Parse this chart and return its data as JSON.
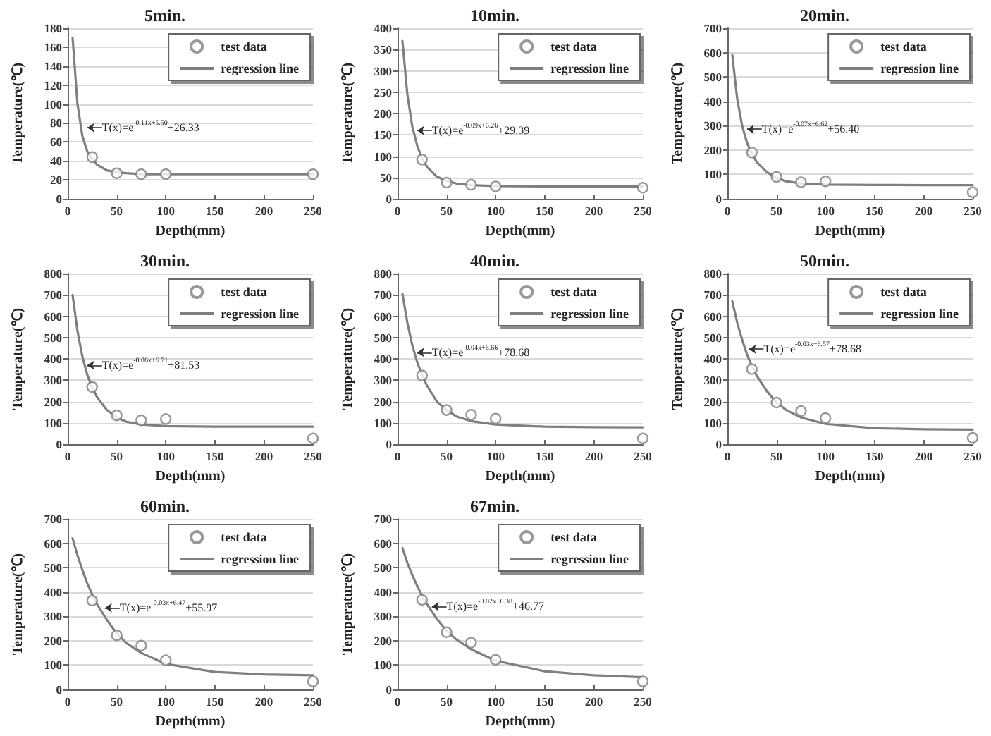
{
  "chart_data": [
    {
      "type": "line",
      "title": "5min.",
      "xlabel": "Depth(mm)",
      "ylabel": "Temperature(℃)",
      "xlim": [
        0,
        250
      ],
      "xticks": [
        0,
        50,
        100,
        150,
        200,
        250
      ],
      "ylim": [
        0,
        180
      ],
      "yticks": [
        0,
        20,
        40,
        60,
        80,
        100,
        120,
        140,
        160,
        180
      ],
      "grid": "y",
      "legend": "top right",
      "annotations": [
        {
          "text": "T(x)=e$^{-0.11x+5.50}$+26.33",
          "x": 20,
          "y": 75
        }
      ],
      "series": [
        {
          "name": "test data",
          "type": "scatter",
          "marker": "circle",
          "color": "#808080",
          "x": [
            25,
            50,
            75,
            100,
            250
          ],
          "values": [
            44,
            27,
            26,
            26,
            26
          ]
        },
        {
          "name": "regression line",
          "type": "line",
          "marker": "none",
          "line_style": "solid",
          "color": "#7f7f7f",
          "x": [
            5,
            10,
            15,
            20,
            25,
            30,
            40,
            50,
            60,
            75,
            100,
            150,
            200,
            250
          ],
          "values": [
            170,
            100,
            66,
            50,
            42,
            36,
            30,
            28,
            27,
            26,
            26,
            26,
            26,
            26
          ]
        }
      ]
    },
    {
      "type": "line",
      "title": "10min.",
      "xlabel": "Depth(mm)",
      "ylabel": "Temperature(℃)",
      "xlim": [
        0,
        250
      ],
      "xticks": [
        0,
        50,
        100,
        150,
        200,
        250
      ],
      "ylim": [
        0,
        400
      ],
      "yticks": [
        0,
        50,
        100,
        150,
        200,
        250,
        300,
        350,
        400
      ],
      "grid": "y",
      "legend": "top right",
      "annotations": [
        {
          "text": "T(x)=e$^{-0.09x+6.26}$+29.39",
          "x": 20,
          "y": 160
        }
      ],
      "series": [
        {
          "name": "test data",
          "type": "scatter",
          "marker": "circle",
          "color": "#808080",
          "x": [
            25,
            50,
            75,
            100,
            250
          ],
          "values": [
            92,
            38,
            33,
            29,
            26
          ]
        },
        {
          "name": "regression line",
          "type": "line",
          "marker": "none",
          "line_style": "solid",
          "color": "#7f7f7f",
          "x": [
            5,
            10,
            15,
            20,
            25,
            30,
            40,
            50,
            60,
            75,
            100,
            150,
            200,
            250
          ],
          "values": [
            370,
            245,
            170,
            125,
            95,
            75,
            52,
            42,
            36,
            32,
            30,
            29,
            29,
            29
          ]
        }
      ]
    },
    {
      "type": "line",
      "title": "20min.",
      "xlabel": "Depth(mm)",
      "ylabel": "Temperature(℃)",
      "xlim": [
        0,
        250
      ],
      "xticks": [
        0,
        50,
        100,
        150,
        200,
        250
      ],
      "ylim": [
        0,
        700
      ],
      "yticks": [
        0,
        100,
        200,
        300,
        400,
        500,
        600,
        700
      ],
      "grid": "y",
      "legend": "top right",
      "annotations": [
        {
          "text": "T(x)=e$^{-0.07x+6.62}$+56.40",
          "x": 20,
          "y": 285
        }
      ],
      "series": [
        {
          "name": "test data",
          "type": "scatter",
          "marker": "circle",
          "color": "#808080",
          "x": [
            25,
            50,
            75,
            100,
            250
          ],
          "values": [
            190,
            90,
            68,
            72,
            27
          ]
        },
        {
          "name": "regression line",
          "type": "line",
          "marker": "none",
          "line_style": "solid",
          "color": "#7f7f7f",
          "x": [
            5,
            10,
            15,
            20,
            25,
            30,
            40,
            50,
            60,
            75,
            100,
            150,
            200,
            250
          ],
          "values": [
            590,
            410,
            300,
            230,
            185,
            150,
            110,
            85,
            72,
            63,
            58,
            57,
            56,
            56
          ]
        }
      ]
    },
    {
      "type": "line",
      "title": "30min.",
      "xlabel": "Depth(mm)",
      "ylabel": "Temperature(℃)",
      "xlim": [
        0,
        250
      ],
      "xticks": [
        0,
        50,
        100,
        150,
        200,
        250
      ],
      "ylim": [
        0,
        800
      ],
      "yticks": [
        0,
        100,
        200,
        300,
        400,
        500,
        600,
        700,
        800
      ],
      "grid": "y",
      "legend": "top right",
      "annotations": [
        {
          "text": "T(x)=e$^{-0.06x+6.71}$+81.53",
          "x": 20,
          "y": 370
        }
      ],
      "series": [
        {
          "name": "test data",
          "type": "scatter",
          "marker": "circle",
          "color": "#808080",
          "x": [
            25,
            50,
            75,
            100,
            250
          ],
          "values": [
            268,
            135,
            112,
            118,
            27
          ]
        },
        {
          "name": "regression line",
          "type": "line",
          "marker": "none",
          "line_style": "solid",
          "color": "#7f7f7f",
          "x": [
            5,
            10,
            15,
            20,
            25,
            30,
            40,
            50,
            60,
            75,
            100,
            150,
            200,
            250
          ],
          "values": [
            700,
            530,
            410,
            325,
            265,
            220,
            160,
            125,
            105,
            92,
            85,
            82,
            82,
            82
          ]
        }
      ]
    },
    {
      "type": "line",
      "title": "40min.",
      "xlabel": "Depth(mm)",
      "ylabel": "Temperature(℃)",
      "xlim": [
        0,
        250
      ],
      "xticks": [
        0,
        50,
        100,
        150,
        200,
        250
      ],
      "ylim": [
        0,
        800
      ],
      "yticks": [
        0,
        100,
        200,
        300,
        400,
        500,
        600,
        700,
        800
      ],
      "grid": "y",
      "legend": "top right",
      "annotations": [
        {
          "text": "T(x)=e$^{-0.04x+6.66}$+78.68",
          "x": 20,
          "y": 430
        }
      ],
      "series": [
        {
          "name": "test data",
          "type": "scatter",
          "marker": "circle",
          "color": "#808080",
          "x": [
            25,
            50,
            75,
            100,
            250
          ],
          "values": [
            322,
            160,
            138,
            120,
            27
          ]
        },
        {
          "name": "regression line",
          "type": "line",
          "marker": "none",
          "line_style": "solid",
          "color": "#7f7f7f",
          "x": [
            5,
            10,
            15,
            20,
            25,
            30,
            40,
            50,
            60,
            75,
            100,
            150,
            200,
            250
          ],
          "values": [
            705,
            570,
            465,
            385,
            325,
            275,
            200,
            160,
            130,
            108,
            92,
            82,
            80,
            79
          ]
        }
      ]
    },
    {
      "type": "line",
      "title": "50min.",
      "xlabel": "Depth(mm)",
      "ylabel": "Temperature(℃)",
      "xlim": [
        0,
        250
      ],
      "xticks": [
        0,
        50,
        100,
        150,
        200,
        250
      ],
      "ylim": [
        0,
        800
      ],
      "yticks": [
        0,
        100,
        200,
        300,
        400,
        500,
        600,
        700,
        800
      ],
      "grid": "y",
      "legend": "top right",
      "annotations": [
        {
          "text": "T(x)=e$^{-0.03x+6.57}$+78.68",
          "x": 22,
          "y": 445
        }
      ],
      "series": [
        {
          "name": "test data",
          "type": "scatter",
          "marker": "circle",
          "color": "#808080",
          "x": [
            25,
            50,
            75,
            100,
            250
          ],
          "values": [
            352,
            195,
            155,
            122,
            30
          ]
        },
        {
          "name": "regression line",
          "type": "line",
          "marker": "none",
          "line_style": "solid",
          "color": "#7f7f7f",
          "x": [
            5,
            10,
            15,
            20,
            25,
            30,
            40,
            50,
            60,
            75,
            100,
            150,
            200,
            250
          ],
          "values": [
            670,
            570,
            490,
            420,
            365,
            320,
            250,
            195,
            160,
            125,
            95,
            75,
            70,
            68
          ]
        }
      ]
    },
    {
      "type": "line",
      "title": "60min.",
      "xlabel": "Depth(mm)",
      "ylabel": "Temperature(℃)",
      "xlim": [
        0,
        250
      ],
      "xticks": [
        0,
        50,
        100,
        150,
        200,
        250
      ],
      "ylim": [
        0,
        700
      ],
      "yticks": [
        0,
        100,
        200,
        300,
        400,
        500,
        600,
        700
      ],
      "grid": "y",
      "legend": "top right",
      "annotations": [
        {
          "text": "T(x)=e$^{-0.03x+6.47}$+55.97",
          "x": 38,
          "y": 335
        }
      ],
      "series": [
        {
          "name": "test data",
          "type": "scatter",
          "marker": "circle",
          "color": "#808080",
          "x": [
            25,
            50,
            75,
            100,
            250
          ],
          "values": [
            365,
            222,
            180,
            120,
            33
          ]
        },
        {
          "name": "regression line",
          "type": "line",
          "marker": "none",
          "line_style": "solid",
          "color": "#7f7f7f",
          "x": [
            5,
            10,
            15,
            20,
            25,
            30,
            40,
            50,
            60,
            75,
            100,
            150,
            200,
            250
          ],
          "values": [
            620,
            550,
            490,
            435,
            390,
            350,
            285,
            230,
            190,
            150,
            105,
            72,
            62,
            58
          ]
        }
      ]
    },
    {
      "type": "line",
      "title": "67min.",
      "xlabel": "Depth(mm)",
      "ylabel": "Temperature(℃)",
      "xlim": [
        0,
        250
      ],
      "xticks": [
        0,
        50,
        100,
        150,
        200,
        250
      ],
      "ylim": [
        0,
        700
      ],
      "yticks": [
        0,
        100,
        200,
        300,
        400,
        500,
        600,
        700
      ],
      "grid": "y",
      "legend": "top right",
      "annotations": [
        {
          "text": "T(x)=e$^{-0.02x+6.38}$+46.77",
          "x": 35,
          "y": 340
        }
      ],
      "series": [
        {
          "name": "test data",
          "type": "scatter",
          "marker": "circle",
          "color": "#808080",
          "x": [
            25,
            50,
            75,
            100,
            250
          ],
          "values": [
            368,
            235,
            192,
            122,
            33
          ]
        },
        {
          "name": "regression line",
          "type": "line",
          "marker": "none",
          "line_style": "solid",
          "color": "#7f7f7f",
          "x": [
            5,
            10,
            15,
            20,
            25,
            30,
            40,
            50,
            60,
            75,
            100,
            150,
            200,
            250
          ],
          "values": [
            580,
            520,
            470,
            425,
            385,
            350,
            290,
            240,
            205,
            165,
            118,
            75,
            58,
            50
          ]
        }
      ]
    }
  ]
}
